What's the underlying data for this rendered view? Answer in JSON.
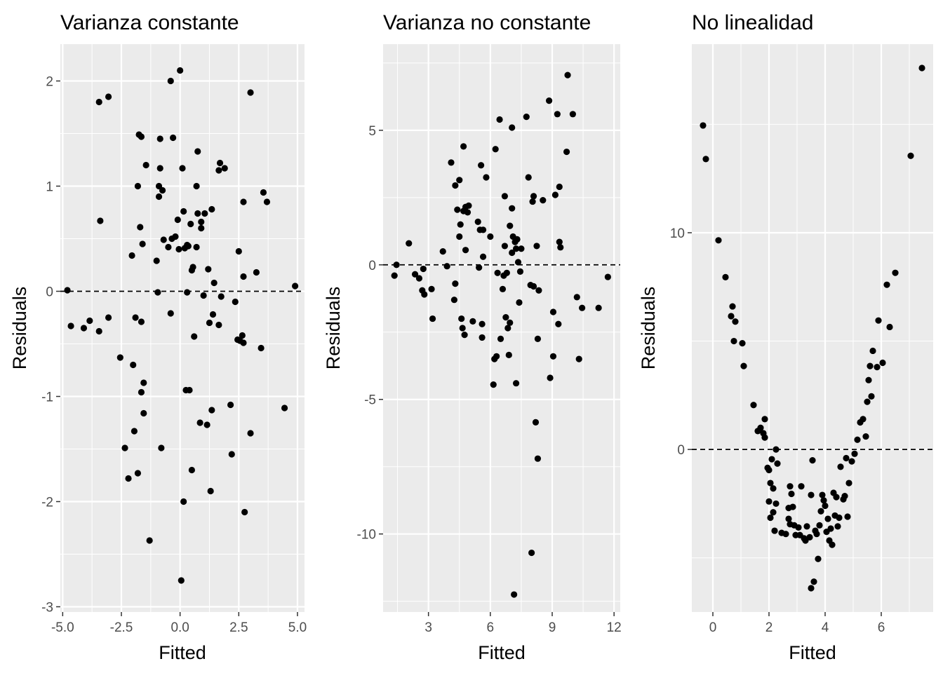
{
  "chart_data": [
    {
      "type": "scatter",
      "title": "Varianza constante",
      "xlabel": "Fitted",
      "ylabel": "Residuals",
      "xlim": [
        -5.1,
        5.3
      ],
      "ylim": [
        -3.05,
        2.35
      ],
      "xticks": [
        -5.0,
        -2.5,
        0.0,
        2.5,
        5.0
      ],
      "xtick_labels": [
        "-5.0",
        "-2.5",
        "0.0",
        "2.5",
        "5.0"
      ],
      "yticks": [
        -3,
        -2,
        -1,
        0,
        1,
        2
      ],
      "ytick_labels": [
        "-3",
        "-2",
        "-1",
        "0",
        "1",
        "2"
      ],
      "hline": 0,
      "points": [
        [
          -4.8,
          0.01
        ],
        [
          -4.65,
          -0.33
        ],
        [
          -4.1,
          -0.35
        ],
        [
          -3.85,
          -0.28
        ],
        [
          -3.45,
          -0.38
        ],
        [
          -3.45,
          1.8
        ],
        [
          -3.4,
          0.67
        ],
        [
          -3.05,
          1.85
        ],
        [
          -3.05,
          -0.25
        ],
        [
          -2.55,
          -0.63
        ],
        [
          -2.35,
          -1.49
        ],
        [
          -2.2,
          -1.78
        ],
        [
          -2.05,
          0.34
        ],
        [
          -2.0,
          -0.7
        ],
        [
          -1.95,
          -1.33
        ],
        [
          -1.9,
          -0.25
        ],
        [
          -1.8,
          1.0
        ],
        [
          -1.8,
          -1.73
        ],
        [
          -1.75,
          1.49
        ],
        [
          -1.7,
          0.61
        ],
        [
          -1.65,
          1.47
        ],
        [
          -1.65,
          -0.96
        ],
        [
          -1.65,
          -0.29
        ],
        [
          -1.6,
          0.45
        ],
        [
          -1.55,
          -0.87
        ],
        [
          -1.55,
          -1.16
        ],
        [
          -1.45,
          1.2
        ],
        [
          -1.3,
          -2.37
        ],
        [
          -1.0,
          0.29
        ],
        [
          -0.95,
          -0.01
        ],
        [
          -0.9,
          1.0
        ],
        [
          -0.9,
          0.9
        ],
        [
          -0.85,
          1.17
        ],
        [
          -0.85,
          1.45
        ],
        [
          -0.8,
          -1.49
        ],
        [
          -0.75,
          0.96
        ],
        [
          -0.7,
          0.49
        ],
        [
          -0.5,
          0.42
        ],
        [
          -0.4,
          2.0
        ],
        [
          -0.4,
          -0.21
        ],
        [
          -0.35,
          0.5
        ],
        [
          -0.3,
          1.46
        ],
        [
          -0.2,
          0.52
        ],
        [
          -0.1,
          0.68
        ],
        [
          -0.05,
          0.4
        ],
        [
          0.0,
          2.1
        ],
        [
          0.05,
          -2.75
        ],
        [
          0.1,
          1.17
        ],
        [
          0.15,
          -2.0
        ],
        [
          0.15,
          0.76
        ],
        [
          0.2,
          0.41
        ],
        [
          0.25,
          -0.94
        ],
        [
          0.3,
          0.44
        ],
        [
          0.3,
          -0.01
        ],
        [
          0.35,
          0.43
        ],
        [
          0.4,
          -0.94
        ],
        [
          0.45,
          0.64
        ],
        [
          0.5,
          -1.7
        ],
        [
          0.5,
          0.2
        ],
        [
          0.55,
          0.23
        ],
        [
          0.6,
          -0.43
        ],
        [
          0.7,
          0.42
        ],
        [
          0.7,
          1.0
        ],
        [
          0.75,
          1.33
        ],
        [
          0.75,
          0.74
        ],
        [
          0.85,
          -1.25
        ],
        [
          0.9,
          0.66
        ],
        [
          0.9,
          0.6
        ],
        [
          1.0,
          -0.04
        ],
        [
          1.05,
          0.74
        ],
        [
          1.15,
          -1.27
        ],
        [
          1.2,
          0.21
        ],
        [
          1.25,
          -0.3
        ],
        [
          1.3,
          -1.9
        ],
        [
          1.35,
          0.78
        ],
        [
          1.35,
          -1.13
        ],
        [
          1.4,
          -0.22
        ],
        [
          1.45,
          0.08
        ],
        [
          1.65,
          -0.32
        ],
        [
          1.65,
          1.15
        ],
        [
          1.7,
          1.22
        ],
        [
          1.75,
          -0.05
        ],
        [
          1.9,
          1.17
        ],
        [
          2.15,
          -1.08
        ],
        [
          2.2,
          -1.55
        ],
        [
          2.35,
          -0.1
        ],
        [
          2.45,
          -0.46
        ],
        [
          2.5,
          0.38
        ],
        [
          2.55,
          -0.47
        ],
        [
          2.65,
          -0.42
        ],
        [
          2.7,
          -0.49
        ],
        [
          2.7,
          0.14
        ],
        [
          2.7,
          0.85
        ],
        [
          2.75,
          -2.1
        ],
        [
          3.0,
          1.89
        ],
        [
          3.0,
          -1.35
        ],
        [
          3.25,
          0.18
        ],
        [
          3.45,
          -0.54
        ],
        [
          3.55,
          0.94
        ],
        [
          3.7,
          0.85
        ],
        [
          4.45,
          -1.11
        ],
        [
          4.9,
          0.05
        ]
      ]
    },
    {
      "type": "scatter",
      "title": "Varianza no constante",
      "xlabel": "Fitted",
      "ylabel": "Residuals",
      "xlim": [
        0.8,
        12.3
      ],
      "ylim": [
        -12.9,
        8.2
      ],
      "xticks": [
        3,
        6,
        9,
        12
      ],
      "xtick_labels": [
        "3",
        "6",
        "9",
        "12"
      ],
      "yticks": [
        -10,
        -5,
        0,
        5
      ],
      "ytick_labels": [
        "-10",
        "-5",
        "0",
        "5"
      ],
      "hline": 0,
      "points": [
        [
          1.35,
          -0.4
        ],
        [
          1.45,
          0.0
        ],
        [
          2.05,
          0.8
        ],
        [
          2.35,
          -0.35
        ],
        [
          2.55,
          -0.5
        ],
        [
          2.7,
          -0.95
        ],
        [
          2.75,
          -0.15
        ],
        [
          2.8,
          -1.1
        ],
        [
          3.15,
          -0.9
        ],
        [
          3.2,
          -2.0
        ],
        [
          3.7,
          0.5
        ],
        [
          3.9,
          -0.05
        ],
        [
          4.1,
          3.8
        ],
        [
          4.25,
          -1.3
        ],
        [
          4.3,
          -0.7
        ],
        [
          4.3,
          2.95
        ],
        [
          4.4,
          2.05
        ],
        [
          4.5,
          3.15
        ],
        [
          4.5,
          1.05
        ],
        [
          4.55,
          1.5
        ],
        [
          4.6,
          -2.0
        ],
        [
          4.65,
          -2.35
        ],
        [
          4.7,
          4.4
        ],
        [
          4.7,
          2.0
        ],
        [
          4.75,
          -2.6
        ],
        [
          4.8,
          0.55
        ],
        [
          4.8,
          2.15
        ],
        [
          4.9,
          1.95
        ],
        [
          4.95,
          2.2
        ],
        [
          5.15,
          -2.1
        ],
        [
          5.4,
          1.6
        ],
        [
          5.45,
          -0.1
        ],
        [
          5.5,
          1.3
        ],
        [
          5.55,
          3.7
        ],
        [
          5.6,
          -2.2
        ],
        [
          5.6,
          -2.7
        ],
        [
          5.65,
          0.3
        ],
        [
          5.65,
          1.3
        ],
        [
          5.8,
          3.25
        ],
        [
          6.0,
          1.05
        ],
        [
          6.15,
          -4.45
        ],
        [
          6.2,
          -3.5
        ],
        [
          6.25,
          4.3
        ],
        [
          6.3,
          -3.4
        ],
        [
          6.35,
          -0.3
        ],
        [
          6.45,
          5.4
        ],
        [
          6.5,
          -2.75
        ],
        [
          6.6,
          -0.9
        ],
        [
          6.65,
          -0.4
        ],
        [
          6.7,
          2.55
        ],
        [
          6.7,
          0.7
        ],
        [
          6.75,
          -1.95
        ],
        [
          6.8,
          -0.3
        ],
        [
          6.85,
          -2.35
        ],
        [
          6.9,
          -3.35
        ],
        [
          6.95,
          -2.15
        ],
        [
          6.95,
          1.45
        ],
        [
          7.05,
          5.1
        ],
        [
          7.05,
          0.45
        ],
        [
          7.05,
          2.1
        ],
        [
          7.1,
          1.05
        ],
        [
          7.15,
          -12.25
        ],
        [
          7.2,
          0.85
        ],
        [
          7.25,
          0.6
        ],
        [
          7.25,
          -4.4
        ],
        [
          7.3,
          0.95
        ],
        [
          7.35,
          0.1
        ],
        [
          7.4,
          -1.4
        ],
        [
          7.45,
          -0.25
        ],
        [
          7.5,
          0.6
        ],
        [
          7.75,
          5.5
        ],
        [
          7.85,
          3.25
        ],
        [
          7.95,
          -0.75
        ],
        [
          8.0,
          -10.7
        ],
        [
          8.05,
          2.35
        ],
        [
          8.1,
          -0.8
        ],
        [
          8.1,
          2.55
        ],
        [
          8.2,
          -5.85
        ],
        [
          8.25,
          0.7
        ],
        [
          8.3,
          -7.2
        ],
        [
          8.3,
          -2.75
        ],
        [
          8.35,
          -0.95
        ],
        [
          8.55,
          2.4
        ],
        [
          8.85,
          6.1
        ],
        [
          8.9,
          -4.2
        ],
        [
          9.05,
          -3.4
        ],
        [
          9.05,
          -1.75
        ],
        [
          9.15,
          2.6
        ],
        [
          9.25,
          5.6
        ],
        [
          9.3,
          -2.2
        ],
        [
          9.35,
          0.85
        ],
        [
          9.35,
          2.9
        ],
        [
          9.4,
          0.65
        ],
        [
          9.7,
          4.2
        ],
        [
          9.75,
          7.05
        ],
        [
          10.0,
          5.6
        ],
        [
          10.2,
          -1.2
        ],
        [
          10.3,
          -3.5
        ],
        [
          10.45,
          -1.6
        ],
        [
          11.25,
          -1.6
        ],
        [
          11.7,
          -0.45
        ]
      ]
    },
    {
      "type": "scatter",
      "title": "No linealidad",
      "xlabel": "Fitted",
      "ylabel": "Residuals",
      "xlim": [
        -0.75,
        7.85
      ],
      "ylim": [
        -7.5,
        18.7
      ],
      "xticks": [
        0,
        2,
        4,
        6
      ],
      "xtick_labels": [
        "0",
        "2",
        "4",
        "6"
      ],
      "yticks": [
        0,
        10
      ],
      "ytick_labels": [
        "0",
        "10"
      ],
      "hline": 0,
      "points": [
        [
          -0.35,
          14.95
        ],
        [
          -0.25,
          13.4
        ],
        [
          0.2,
          9.65
        ],
        [
          0.45,
          7.95
        ],
        [
          0.65,
          6.15
        ],
        [
          0.7,
          6.6
        ],
        [
          0.75,
          5.0
        ],
        [
          0.8,
          5.9
        ],
        [
          1.05,
          4.9
        ],
        [
          1.1,
          3.85
        ],
        [
          1.45,
          2.05
        ],
        [
          1.6,
          0.85
        ],
        [
          1.7,
          1.0
        ],
        [
          1.8,
          0.75
        ],
        [
          1.85,
          0.55
        ],
        [
          1.85,
          1.4
        ],
        [
          1.95,
          -0.85
        ],
        [
          2.0,
          -0.95
        ],
        [
          2.0,
          -2.4
        ],
        [
          2.05,
          -1.55
        ],
        [
          2.05,
          -3.15
        ],
        [
          2.1,
          -0.45
        ],
        [
          2.15,
          -1.8
        ],
        [
          2.15,
          -2.9
        ],
        [
          2.2,
          -3.75
        ],
        [
          2.25,
          -2.5
        ],
        [
          2.25,
          0.0
        ],
        [
          2.3,
          -0.65
        ],
        [
          2.45,
          -3.85
        ],
        [
          2.6,
          -3.9
        ],
        [
          2.7,
          -2.7
        ],
        [
          2.7,
          -3.2
        ],
        [
          2.75,
          -3.45
        ],
        [
          2.75,
          -1.7
        ],
        [
          2.8,
          -2.05
        ],
        [
          2.85,
          -2.65
        ],
        [
          2.9,
          -3.5
        ],
        [
          2.95,
          -3.95
        ],
        [
          3.05,
          -3.6
        ],
        [
          3.1,
          -3.95
        ],
        [
          3.15,
          -1.7
        ],
        [
          3.25,
          -4.1
        ],
        [
          3.3,
          -4.2
        ],
        [
          3.35,
          -3.55
        ],
        [
          3.45,
          -4.05
        ],
        [
          3.5,
          -2.1
        ],
        [
          3.5,
          -6.4
        ],
        [
          3.55,
          -0.5
        ],
        [
          3.6,
          -6.1
        ],
        [
          3.65,
          -3.75
        ],
        [
          3.7,
          -3.9
        ],
        [
          3.75,
          -5.05
        ],
        [
          3.8,
          -3.5
        ],
        [
          3.85,
          -2.85
        ],
        [
          3.9,
          -2.1
        ],
        [
          3.95,
          -2.35
        ],
        [
          4.0,
          -2.6
        ],
        [
          4.05,
          -3.8
        ],
        [
          4.1,
          -3.2
        ],
        [
          4.15,
          -4.2
        ],
        [
          4.2,
          -3.65
        ],
        [
          4.25,
          -4.4
        ],
        [
          4.3,
          -2.0
        ],
        [
          4.35,
          -3.05
        ],
        [
          4.4,
          -2.2
        ],
        [
          4.45,
          -3.55
        ],
        [
          4.5,
          -3.15
        ],
        [
          4.55,
          -0.8
        ],
        [
          4.65,
          -2.3
        ],
        [
          4.7,
          -2.15
        ],
        [
          4.75,
          -0.4
        ],
        [
          4.8,
          -3.1
        ],
        [
          4.85,
          -1.55
        ],
        [
          4.95,
          -0.55
        ],
        [
          5.05,
          -0.2
        ],
        [
          5.15,
          0.45
        ],
        [
          5.25,
          1.25
        ],
        [
          5.35,
          1.4
        ],
        [
          5.45,
          0.6
        ],
        [
          5.5,
          2.2
        ],
        [
          5.55,
          3.2
        ],
        [
          5.6,
          3.85
        ],
        [
          5.65,
          2.45
        ],
        [
          5.7,
          4.55
        ],
        [
          5.85,
          3.8
        ],
        [
          5.9,
          5.95
        ],
        [
          6.05,
          4.0
        ],
        [
          6.2,
          7.6
        ],
        [
          6.3,
          5.65
        ],
        [
          6.5,
          8.15
        ],
        [
          7.05,
          13.55
        ],
        [
          7.45,
          17.6
        ]
      ]
    }
  ]
}
